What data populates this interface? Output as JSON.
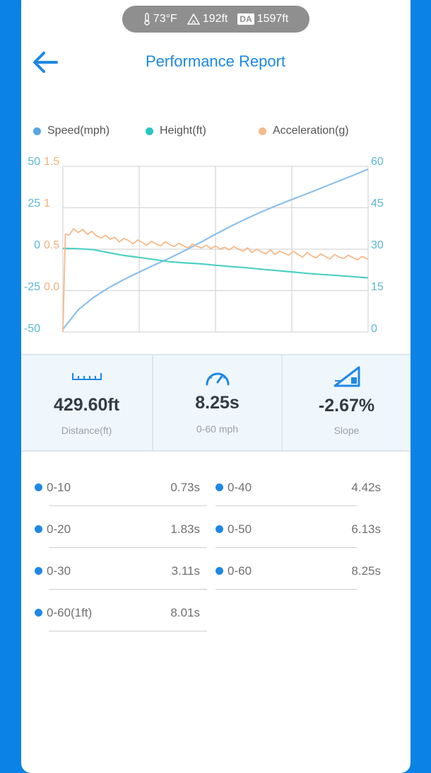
{
  "status_pill": {
    "temperature": "73°F",
    "altitude": "192ft",
    "density_altitude_tag": "DA",
    "density_altitude": "1597ft"
  },
  "header": {
    "title": "Performance Report"
  },
  "legend": [
    {
      "label": "Speed(mph)",
      "color": "#5aa5e3"
    },
    {
      "label": "Height(ft)",
      "color": "#26c6c6"
    },
    {
      "label": "Acceleration(g)",
      "color": "#f7b98a"
    }
  ],
  "chart_data": {
    "type": "line",
    "left_axis_height_ticks": [
      "50",
      "25",
      "0",
      "-25",
      "-50"
    ],
    "left_axis_accel_ticks": [
      "1.5",
      "1",
      "0.5",
      "0.0"
    ],
    "right_axis_speed_ticks": [
      "60",
      "45",
      "30",
      "15",
      "0"
    ],
    "speed_range": [
      0,
      60
    ],
    "height_range": [
      -50,
      50
    ],
    "accel_range": [
      -1,
      1.5
    ],
    "grid": true,
    "series": [
      {
        "name": "Speed(mph)",
        "color": "#8cc0ec",
        "x": [
          0,
          0.05,
          0.1,
          0.15,
          0.2,
          0.25,
          0.3,
          0.35,
          0.4,
          0.45,
          0.5,
          0.55,
          0.6,
          0.65,
          0.7,
          0.75,
          0.8,
          0.85,
          0.9,
          0.95,
          1.0
        ],
        "values": [
          1,
          8,
          12.5,
          16,
          19,
          21.7,
          24.3,
          26.8,
          29.5,
          32.4,
          35.4,
          38.3,
          41,
          43.5,
          45.8,
          48,
          50.1,
          52.3,
          54.5,
          56.7,
          59
        ]
      },
      {
        "name": "Height(ft)",
        "color": "#4dd0c4",
        "x": [
          0,
          0.05,
          0.1,
          0.15,
          0.2,
          0.25,
          0.3,
          0.35,
          0.4,
          0.45,
          0.5,
          0.55,
          0.6,
          0.65,
          0.7,
          0.75,
          0.8,
          0.85,
          0.9,
          0.95,
          1.0
        ],
        "values": [
          0.5,
          0.3,
          -0.3,
          -2.1,
          -3.8,
          -5,
          -6.3,
          -7.6,
          -8.3,
          -8.8,
          -9.7,
          -10.5,
          -11.2,
          -12.1,
          -12.9,
          -13.7,
          -14.6,
          -15.3,
          -15.9,
          -16.6,
          -17.3
        ]
      },
      {
        "name": "Acceleration(g)",
        "color": "#f7b98a",
        "x": [
          0,
          0.008,
          0.02,
          0.035,
          0.05,
          0.065,
          0.08,
          0.095,
          0.11,
          0.125,
          0.14,
          0.155,
          0.17,
          0.185,
          0.2,
          0.215,
          0.23,
          0.245,
          0.26,
          0.275,
          0.29,
          0.305,
          0.32,
          0.335,
          0.35,
          0.365,
          0.38,
          0.395,
          0.41,
          0.425,
          0.44,
          0.455,
          0.47,
          0.485,
          0.5,
          0.515,
          0.53,
          0.545,
          0.56,
          0.575,
          0.59,
          0.605,
          0.62,
          0.635,
          0.65,
          0.665,
          0.68,
          0.695,
          0.71,
          0.725,
          0.74,
          0.755,
          0.77,
          0.785,
          0.8,
          0.815,
          0.83,
          0.845,
          0.86,
          0.875,
          0.89,
          0.905,
          0.92,
          0.935,
          0.95,
          0.965,
          0.98,
          1.0
        ],
        "values": [
          -1.0,
          0.48,
          0.46,
          0.56,
          0.5,
          0.55,
          0.47,
          0.52,
          0.45,
          0.42,
          0.46,
          0.4,
          0.43,
          0.36,
          0.41,
          0.38,
          0.33,
          0.39,
          0.35,
          0.31,
          0.37,
          0.33,
          0.3,
          0.36,
          0.32,
          0.29,
          0.34,
          0.3,
          0.27,
          0.33,
          0.29,
          0.27,
          0.31,
          0.26,
          0.3,
          0.25,
          0.28,
          0.24,
          0.29,
          0.25,
          0.22,
          0.27,
          0.2,
          0.25,
          0.21,
          0.18,
          0.24,
          0.17,
          0.22,
          0.19,
          0.16,
          0.22,
          0.17,
          0.13,
          0.2,
          0.15,
          0.12,
          0.18,
          0.14,
          0.1,
          0.17,
          0.13,
          0.11,
          0.16,
          0.12,
          0.09,
          0.14,
          0.1
        ]
      }
    ]
  },
  "stats": [
    {
      "value": "429.60ft",
      "label": "Distance(ft)",
      "icon": "ruler-icon"
    },
    {
      "value": "8.25s",
      "label": "0-60 mph",
      "icon": "speedometer-icon"
    },
    {
      "value": "-2.67%",
      "label": "Slope",
      "icon": "slope-icon"
    }
  ],
  "splits": {
    "left": [
      {
        "name": "0-10",
        "time": "0.73s"
      },
      {
        "name": "0-20",
        "time": "1.83s"
      },
      {
        "name": "0-30",
        "time": "3.11s"
      },
      {
        "name": "0-60(1ft)",
        "time": "8.01s"
      }
    ],
    "right": [
      {
        "name": "0-40",
        "time": "4.42s"
      },
      {
        "name": "0-50",
        "time": "6.13s"
      },
      {
        "name": "0-60",
        "time": "8.25s"
      }
    ]
  },
  "colors": {
    "background": "#0a82e6",
    "accent": "#1e88e5",
    "card": "#ffffff"
  }
}
